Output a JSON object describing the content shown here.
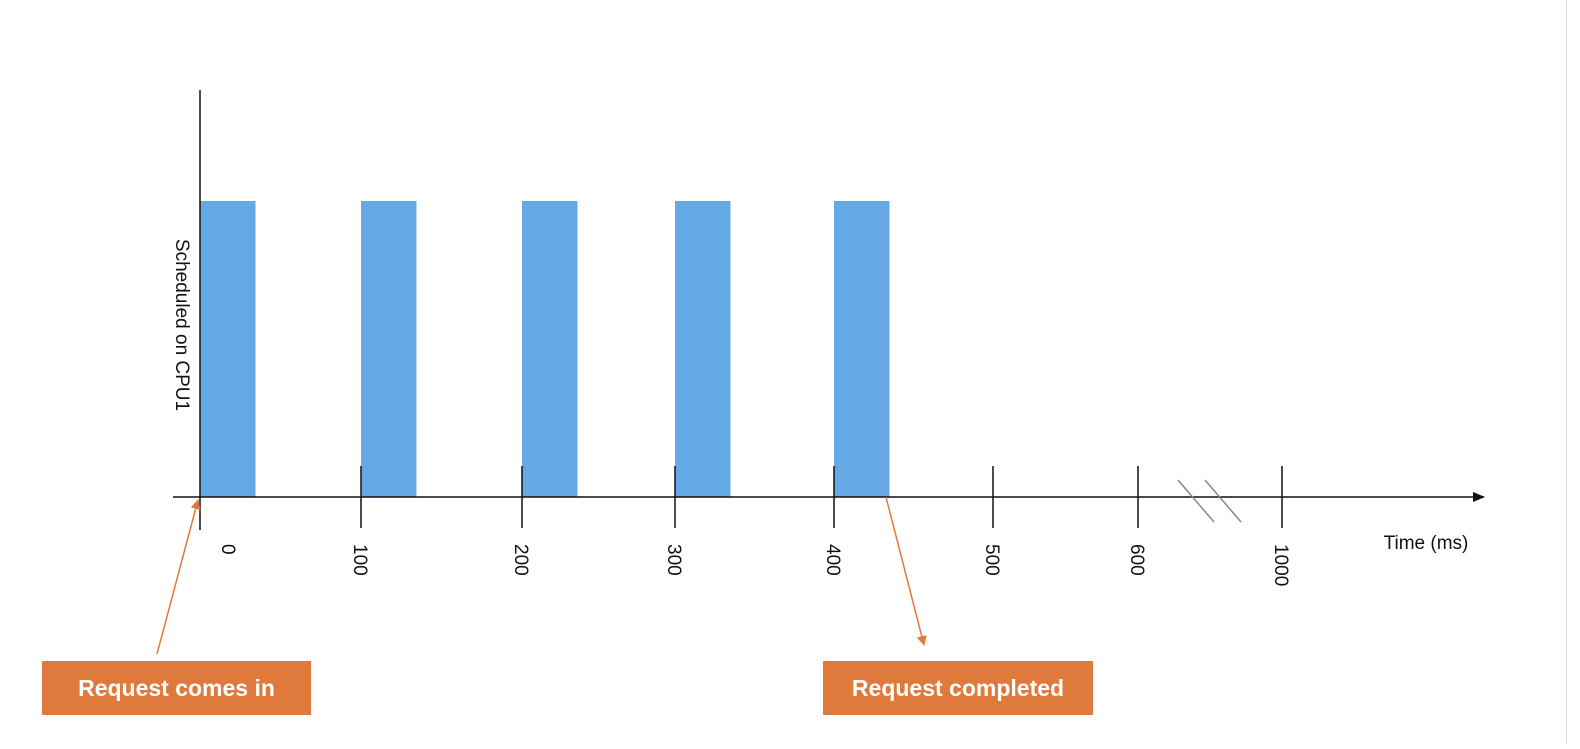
{
  "chart_data": {
    "type": "bar",
    "ylabel": "Scheduled on CPU1",
    "xlabel": "Time (ms)",
    "x_ticks": [
      "0",
      "100",
      "200",
      "300",
      "400",
      "500",
      "600",
      "1000"
    ],
    "x_tick_values": [
      0,
      100,
      200,
      300,
      400,
      500,
      600,
      1000
    ],
    "axis_break": {
      "from": 600,
      "to": 1000
    },
    "bars": [
      {
        "start": 0,
        "end": 35,
        "scheduled": 1
      },
      {
        "start": 100,
        "end": 135,
        "scheduled": 1
      },
      {
        "start": 200,
        "end": 235,
        "scheduled": 1
      },
      {
        "start": 300,
        "end": 335,
        "scheduled": 1
      },
      {
        "start": 400,
        "end": 435,
        "scheduled": 1
      }
    ],
    "bar_color": "#64a9e6",
    "annotations": [
      {
        "text": "Request comes in",
        "at": 0
      },
      {
        "text": "Request completed",
        "at": 435
      }
    ],
    "annotation_color": "#e07a3c",
    "grid": false,
    "legend": "none"
  }
}
